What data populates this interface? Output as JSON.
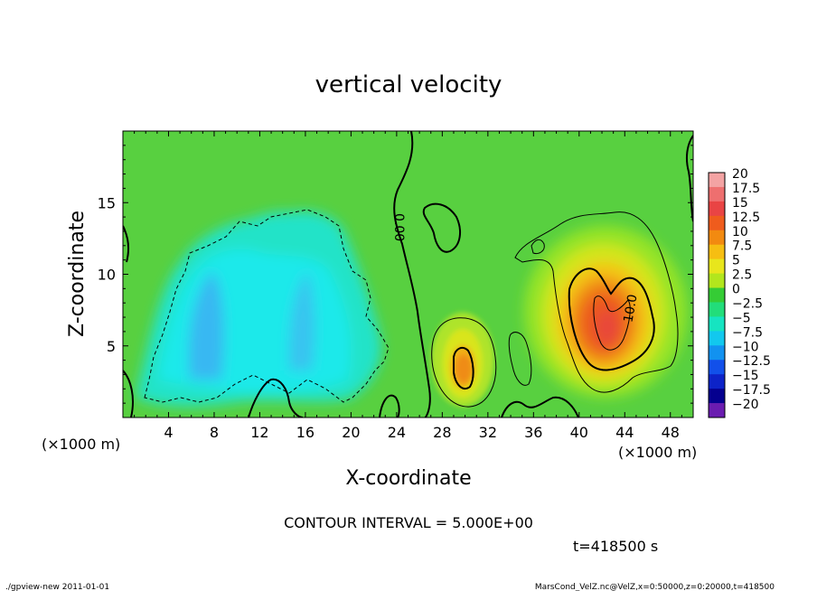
{
  "chart_data": {
    "type": "heatmap",
    "title": "vertical velocity",
    "xlabel": "X-coordinate",
    "ylabel": "Z-coordinate",
    "x_unit_label": "(×1000 m)",
    "xlim": [
      0,
      50
    ],
    "ylim": [
      0,
      20
    ],
    "x_ticks": [
      4,
      8,
      12,
      16,
      20,
      24,
      28,
      32,
      36,
      40,
      44,
      48
    ],
    "y_ticks": [
      5,
      10,
      15
    ],
    "colorbar": {
      "levels": [
        "20",
        "17.5",
        "15",
        "12.5",
        "10",
        "7.5",
        "5",
        "2.5",
        "0",
        "−2.5",
        "−5",
        "−7.5",
        "−10",
        "−12.5",
        "−15",
        "−17.5",
        "−20"
      ],
      "colors": [
        "#f3a3a3",
        "#ee6f6f",
        "#e94444",
        "#ef5c1d",
        "#f28a10",
        "#f6be12",
        "#e8e61c",
        "#b2e61d",
        "#35cc35",
        "#22dd7a",
        "#16e4c1",
        "#12c8ee",
        "#1292f0",
        "#1250ea",
        "#0d23c8",
        "#05008f",
        "#6a1cb0"
      ]
    },
    "contour_interval_text": "CONTOUR INTERVAL = 5.000E+00",
    "contour_labels": [
      "0.00",
      "10.0"
    ],
    "time_text": "t=418500 s"
  },
  "footer": {
    "left": "./gpview-new  2011-01-01",
    "right": "MarsCond_VelZ.nc@VelZ,x=0:50000,z=0:20000,t=418500"
  }
}
